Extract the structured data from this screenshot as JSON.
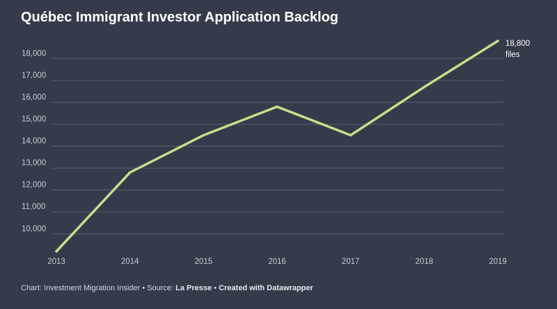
{
  "title": "Québec Immigrant Investor Application Backlog",
  "chart_data": {
    "type": "line",
    "title": "Québec Immigrant Investor Application Backlog",
    "xlabel": "",
    "ylabel": "",
    "x": [
      "2013",
      "2014",
      "2015",
      "2016",
      "2017",
      "2018",
      "2019"
    ],
    "series": [
      {
        "values": [
          9200,
          12800,
          14500,
          15800,
          14500,
          16700,
          18800
        ],
        "color": "#c5e08a"
      }
    ],
    "ylim": [
      9200,
      18800
    ],
    "yticks": [
      10000,
      11000,
      12000,
      13000,
      14000,
      15000,
      16000,
      17000,
      18000
    ],
    "ytick_labels": [
      "10,000",
      "11,000",
      "12,000",
      "13,000",
      "14,000",
      "15,000",
      "16,000",
      "17,000",
      "18,000"
    ],
    "grid": true,
    "annotation": {
      "line1": "18,800",
      "line2": "files"
    }
  },
  "footer": {
    "prefix": "Chart: Investment Migration Insider • Source: ",
    "source": "La Presse",
    "separator": " • ",
    "credit": "Created with Datawrapper"
  },
  "colors": {
    "background": "#353b4b",
    "grid": "#5a6070",
    "axis_text": "#c9ccd3",
    "line": "#c5e08a"
  }
}
